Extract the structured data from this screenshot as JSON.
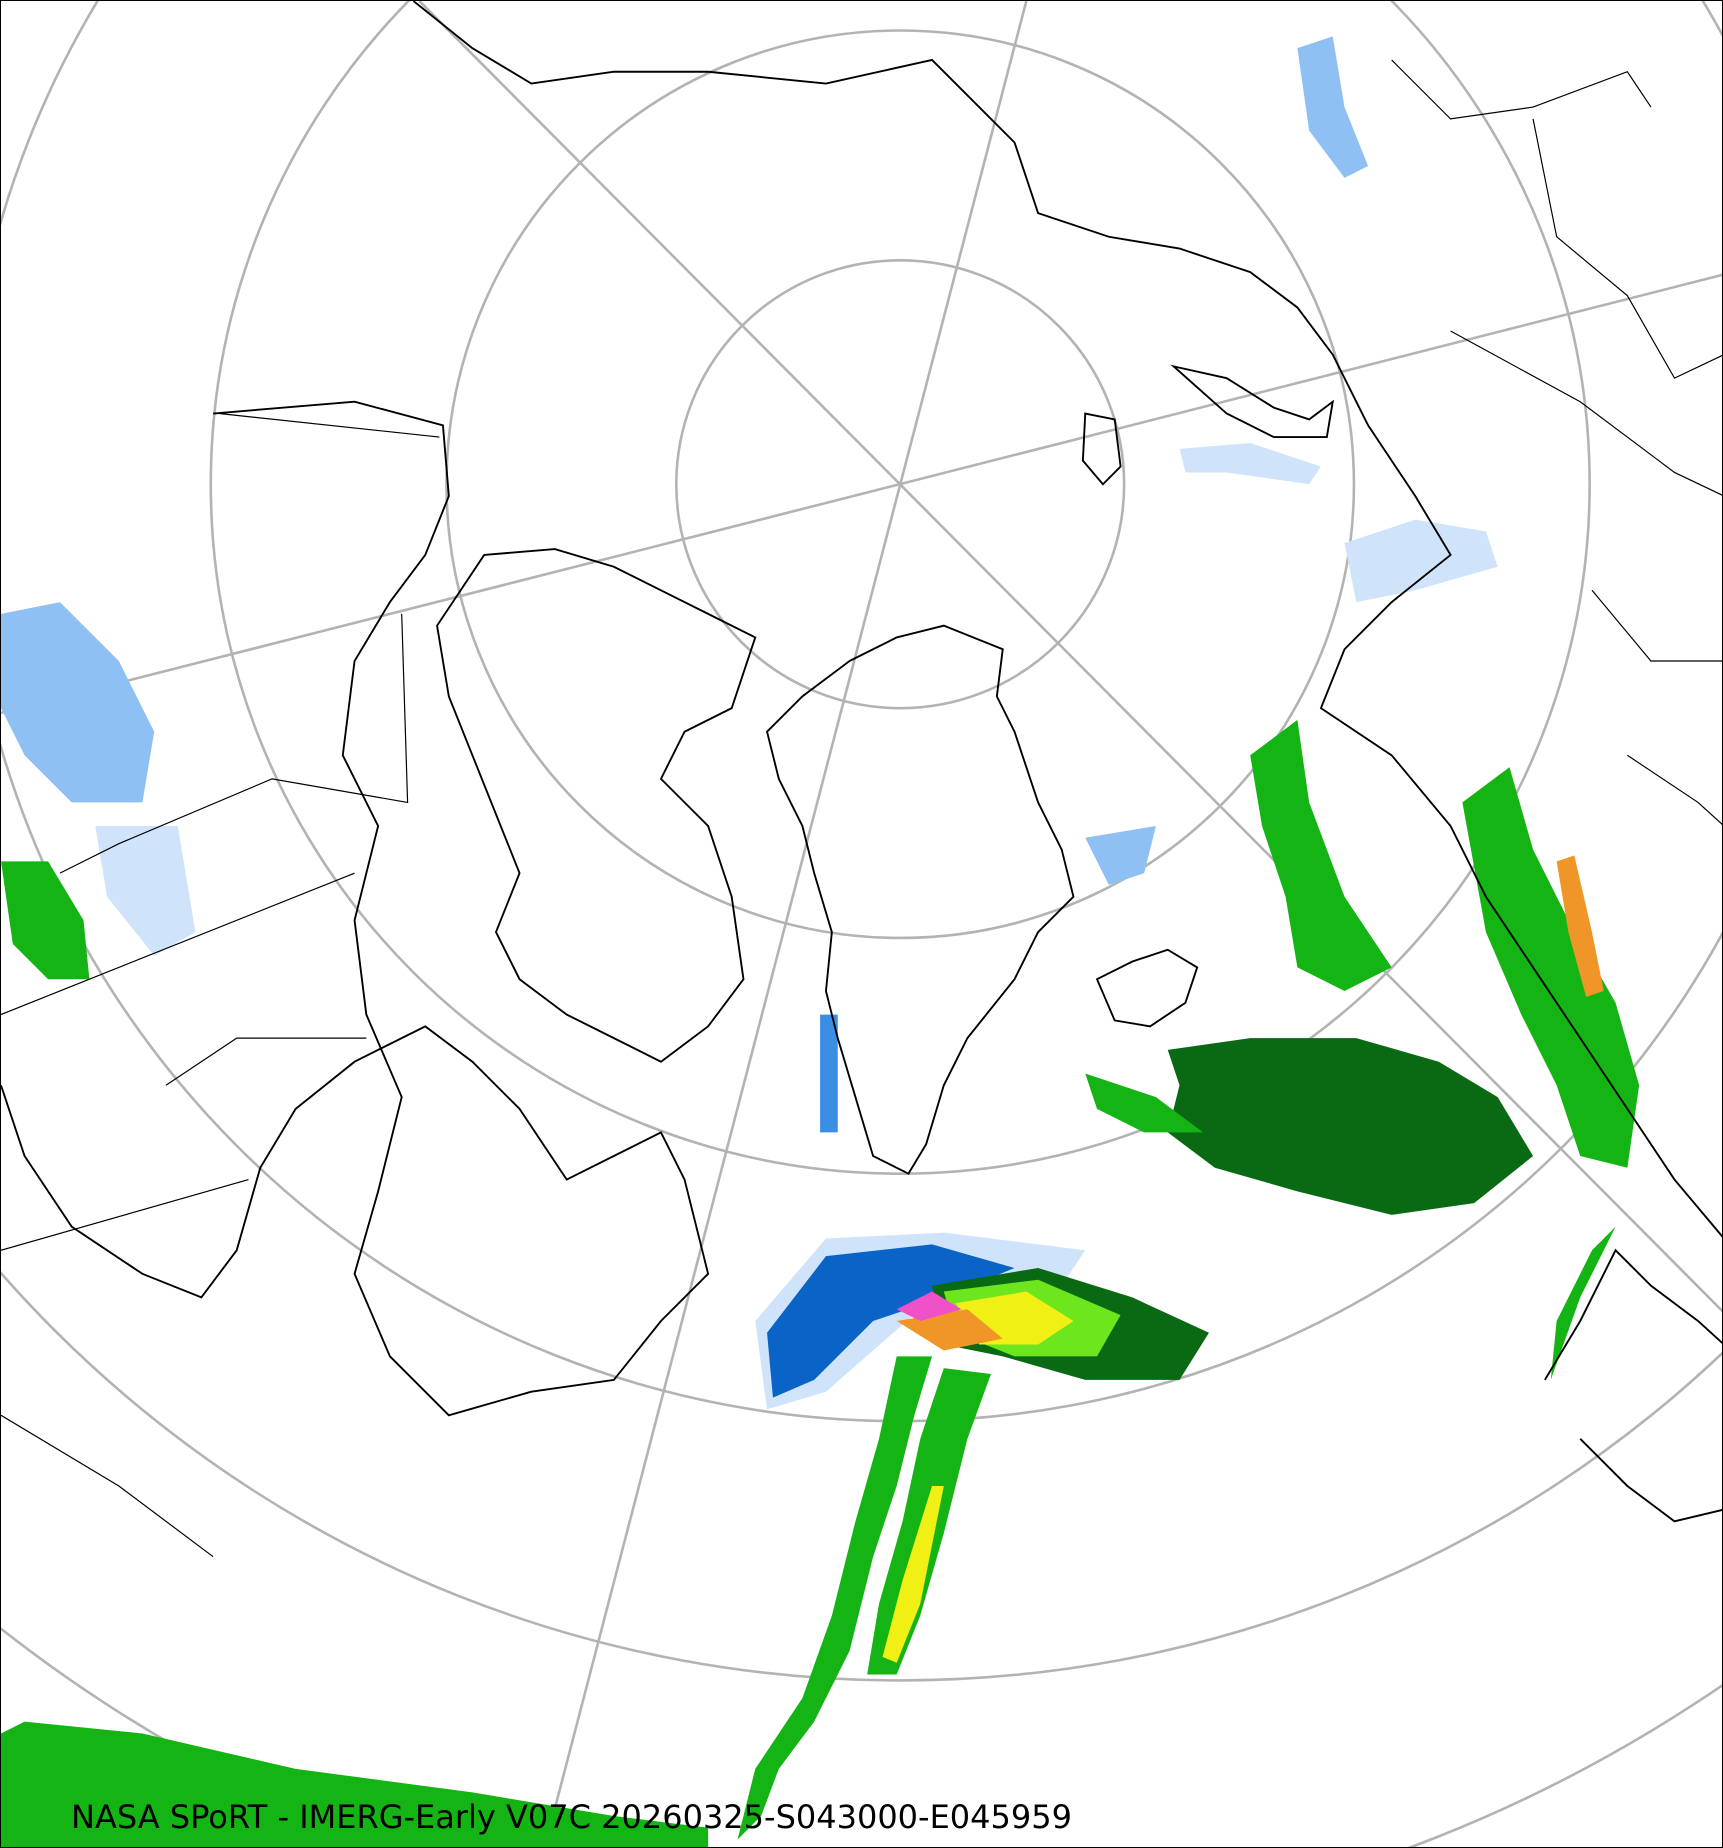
{
  "map": {
    "projection": "north-polar-stereographic",
    "caption": "NASA SPoRT - IMERG-Early V07C 20260325-S043000-E045959",
    "graticule_color": "#b3b3b3",
    "coastline_color": "#000000",
    "precip_colors": {
      "very_light": "#cfe4fb",
      "light": "#8ec0f4",
      "moderate_blue": "#3a8ee6",
      "heavy_blue": "#0a64c8",
      "dark_green": "#0a6a14",
      "green": "#14b414",
      "light_green": "#6ee61e",
      "yellow": "#f0f014",
      "orange": "#f09628",
      "red": "#e63c28",
      "magenta": "#f050c8"
    }
  }
}
